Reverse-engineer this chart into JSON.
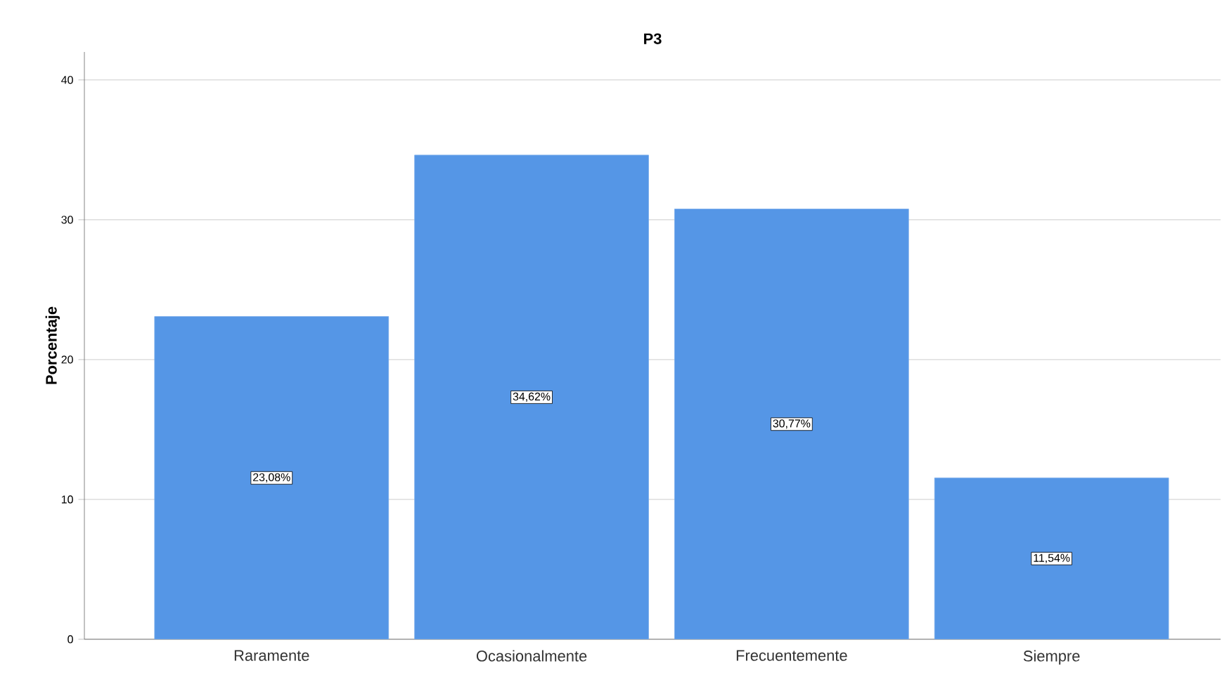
{
  "chart_data": {
    "type": "bar",
    "title": "P3",
    "ylabel": "Porcentaje",
    "categories": [
      "Raramente",
      "Ocasionalmente",
      "Frecuentemente",
      "Siempre"
    ],
    "values": [
      23.08,
      34.62,
      30.77,
      11.54
    ],
    "value_labels": [
      "23,08%",
      "34,62%",
      "30,77%",
      "11,54%"
    ],
    "color": "#5596e6",
    "ylim": [
      0,
      42
    ],
    "yticks": [
      0,
      10,
      20,
      30,
      40
    ],
    "grid": "y"
  }
}
